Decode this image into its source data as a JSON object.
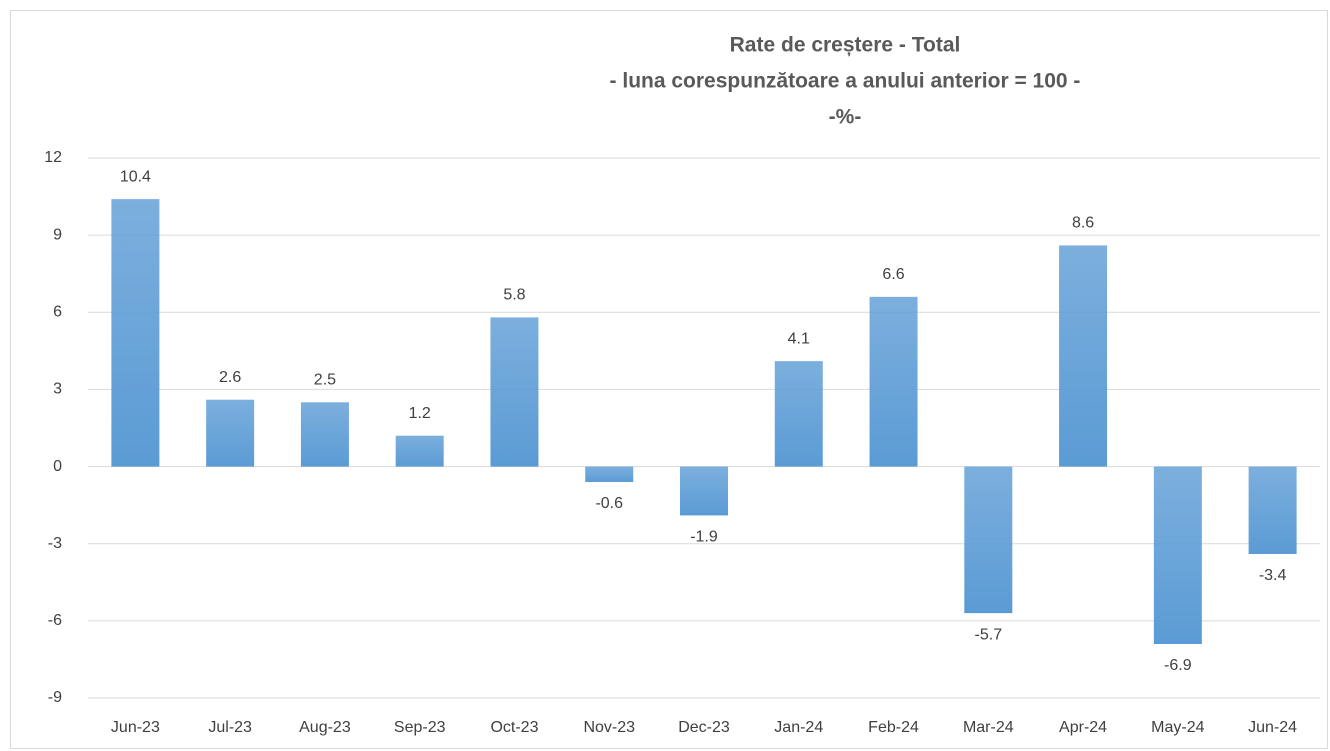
{
  "chart_data": {
    "type": "bar",
    "title": [
      "Rate de creștere - Total",
      "- luna corespunzătoare a anului anterior = 100 -",
      "-%-"
    ],
    "categories": [
      "Jun-23",
      "Jul-23",
      "Aug-23",
      "Sep-23",
      "Oct-23",
      "Nov-23",
      "Dec-23",
      "Jan-24",
      "Feb-24",
      "Mar-24",
      "Apr-24",
      "May-24",
      "Jun-24"
    ],
    "values": [
      10.4,
      2.6,
      2.5,
      1.2,
      5.8,
      -0.6,
      -1.9,
      4.1,
      6.6,
      -5.7,
      8.6,
      -6.9,
      -3.4
    ],
    "color": "#5b9bd5",
    "ylim": [
      -9,
      12
    ],
    "yticks": [
      -9,
      -6,
      -3,
      0,
      3,
      6,
      9,
      12
    ],
    "grid": true
  }
}
